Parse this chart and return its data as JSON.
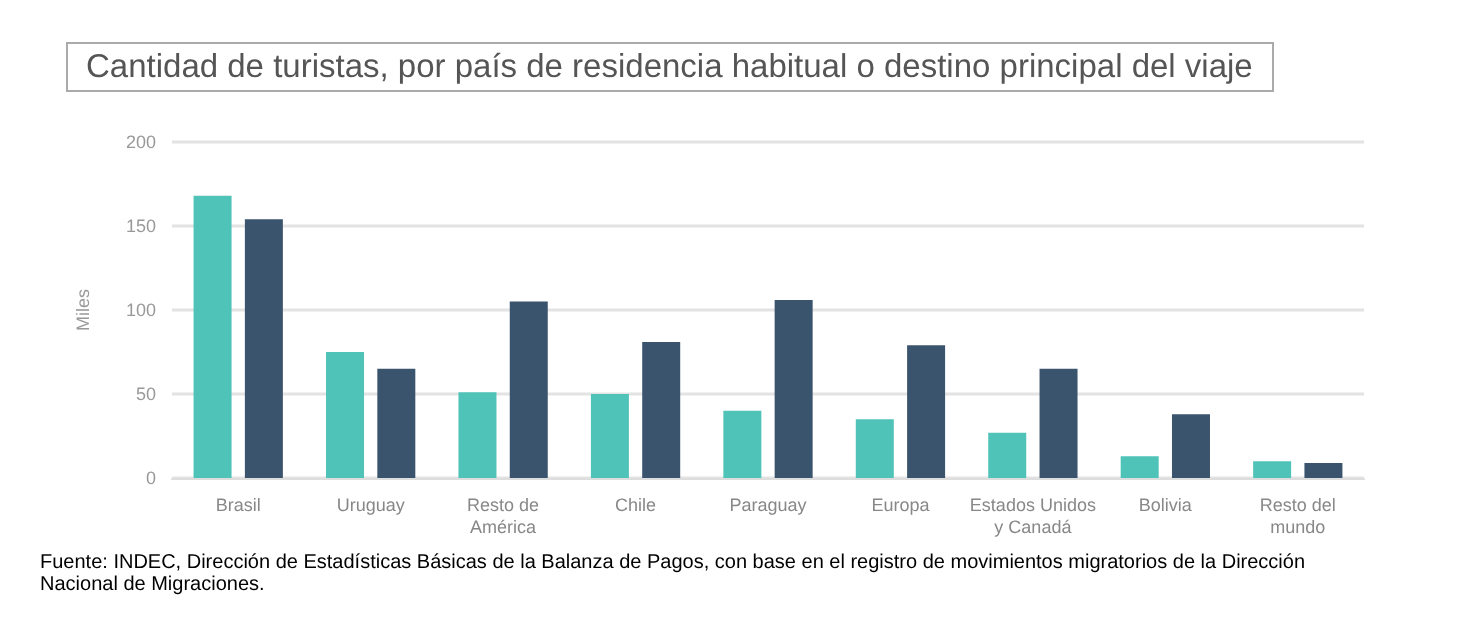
{
  "chart_data": {
    "type": "bar",
    "title": "Cantidad de turistas, por país de residencia habitual o destino principal del viaje",
    "ylabel": "Miles",
    "categories": [
      "Brasil",
      "Uruguay",
      "Resto de\nAmérica",
      "Chile",
      "Paraguay",
      "Europa",
      "Estados Unidos\ny Canadá",
      "Bolivia",
      "Resto del\nmundo"
    ],
    "series": [
      {
        "color": "#4fc3b8",
        "values": [
          168,
          75,
          51,
          50,
          40,
          35,
          27,
          13,
          10
        ]
      },
      {
        "color": "#3b546e",
        "values": [
          154,
          65,
          105,
          81,
          106,
          79,
          65,
          38,
          9
        ]
      }
    ],
    "ylim": [
      0,
      200
    ],
    "yticks": [
      0,
      50,
      100,
      150,
      200
    ],
    "grid": "y",
    "annotations": [
      "Fuente: INDEC, Dirección de Estadísticas Básicas de la Balanza de Pagos, con base en el registro de movimientos migratorios de la Dirección Nacional de Migraciones."
    ]
  }
}
